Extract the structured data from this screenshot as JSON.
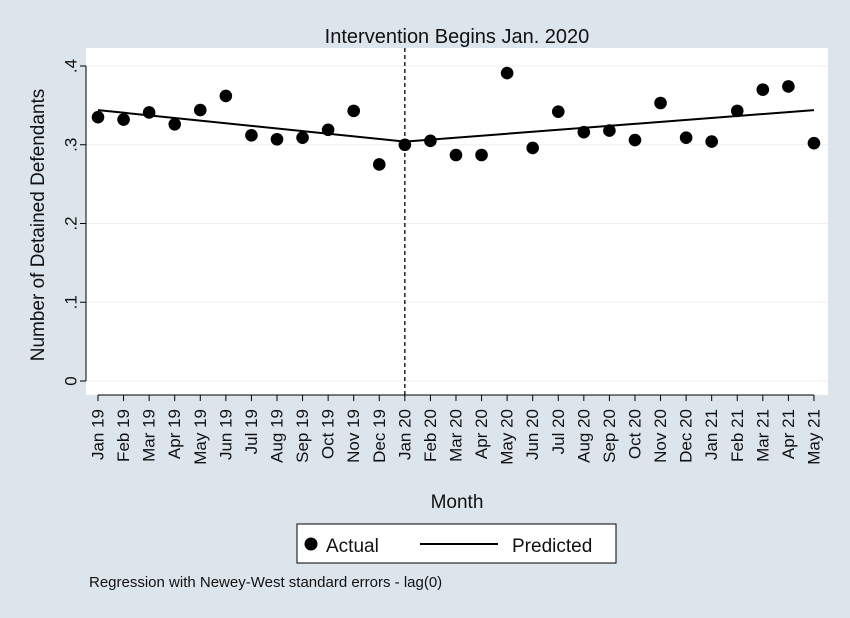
{
  "chart_data": {
    "type": "scatter",
    "title": "Intervention Begins Jan. 2020",
    "xlabel": "Month",
    "ylabel": "Number of Detained Defendants",
    "categories": [
      "Jan 19",
      "Feb 19",
      "Mar 19",
      "Apr 19",
      "May 19",
      "Jun 19",
      "Jul 19",
      "Aug 19",
      "Sep 19",
      "Oct 19",
      "Nov 19",
      "Dec 19",
      "Jan 20",
      "Feb 20",
      "Mar 20",
      "Apr 20",
      "May 20",
      "Jun 20",
      "Jul 20",
      "Aug 20",
      "Sep 20",
      "Oct 20",
      "Nov 20",
      "Dec 20",
      "Jan 21",
      "Feb 21",
      "Mar 21",
      "Apr 21",
      "May 21"
    ],
    "ylim": [
      0,
      0.4
    ],
    "yticks": [
      0,
      0.1,
      0.2,
      0.3,
      0.4
    ],
    "ytick_labels": [
      "0",
      ".1",
      ".2",
      ".3",
      ".4"
    ],
    "intervention_category": "Jan 20",
    "series": [
      {
        "name": "Actual",
        "kind": "points",
        "color": "#000000",
        "values": [
          0.335,
          0.332,
          0.341,
          0.326,
          0.344,
          0.362,
          0.312,
          0.307,
          0.309,
          0.319,
          0.343,
          0.275,
          0.3,
          0.305,
          0.287,
          0.287,
          0.391,
          0.296,
          0.342,
          0.316,
          0.318,
          0.306,
          0.353,
          0.309,
          0.304,
          0.343,
          0.37,
          0.374,
          0.302
        ]
      },
      {
        "name": "Predicted",
        "kind": "line",
        "color": "#000000",
        "segments": [
          {
            "from": "Jan 19",
            "to": "Jan 20",
            "y": [
              0.344,
              0.304
            ]
          },
          {
            "from": "Jan 20",
            "to": "May 21",
            "y": [
              0.304,
              0.344
            ]
          }
        ]
      }
    ],
    "grid": true,
    "legend_position": "bottom",
    "note": "Regression with Newey-West standard errors - lag(0)"
  }
}
